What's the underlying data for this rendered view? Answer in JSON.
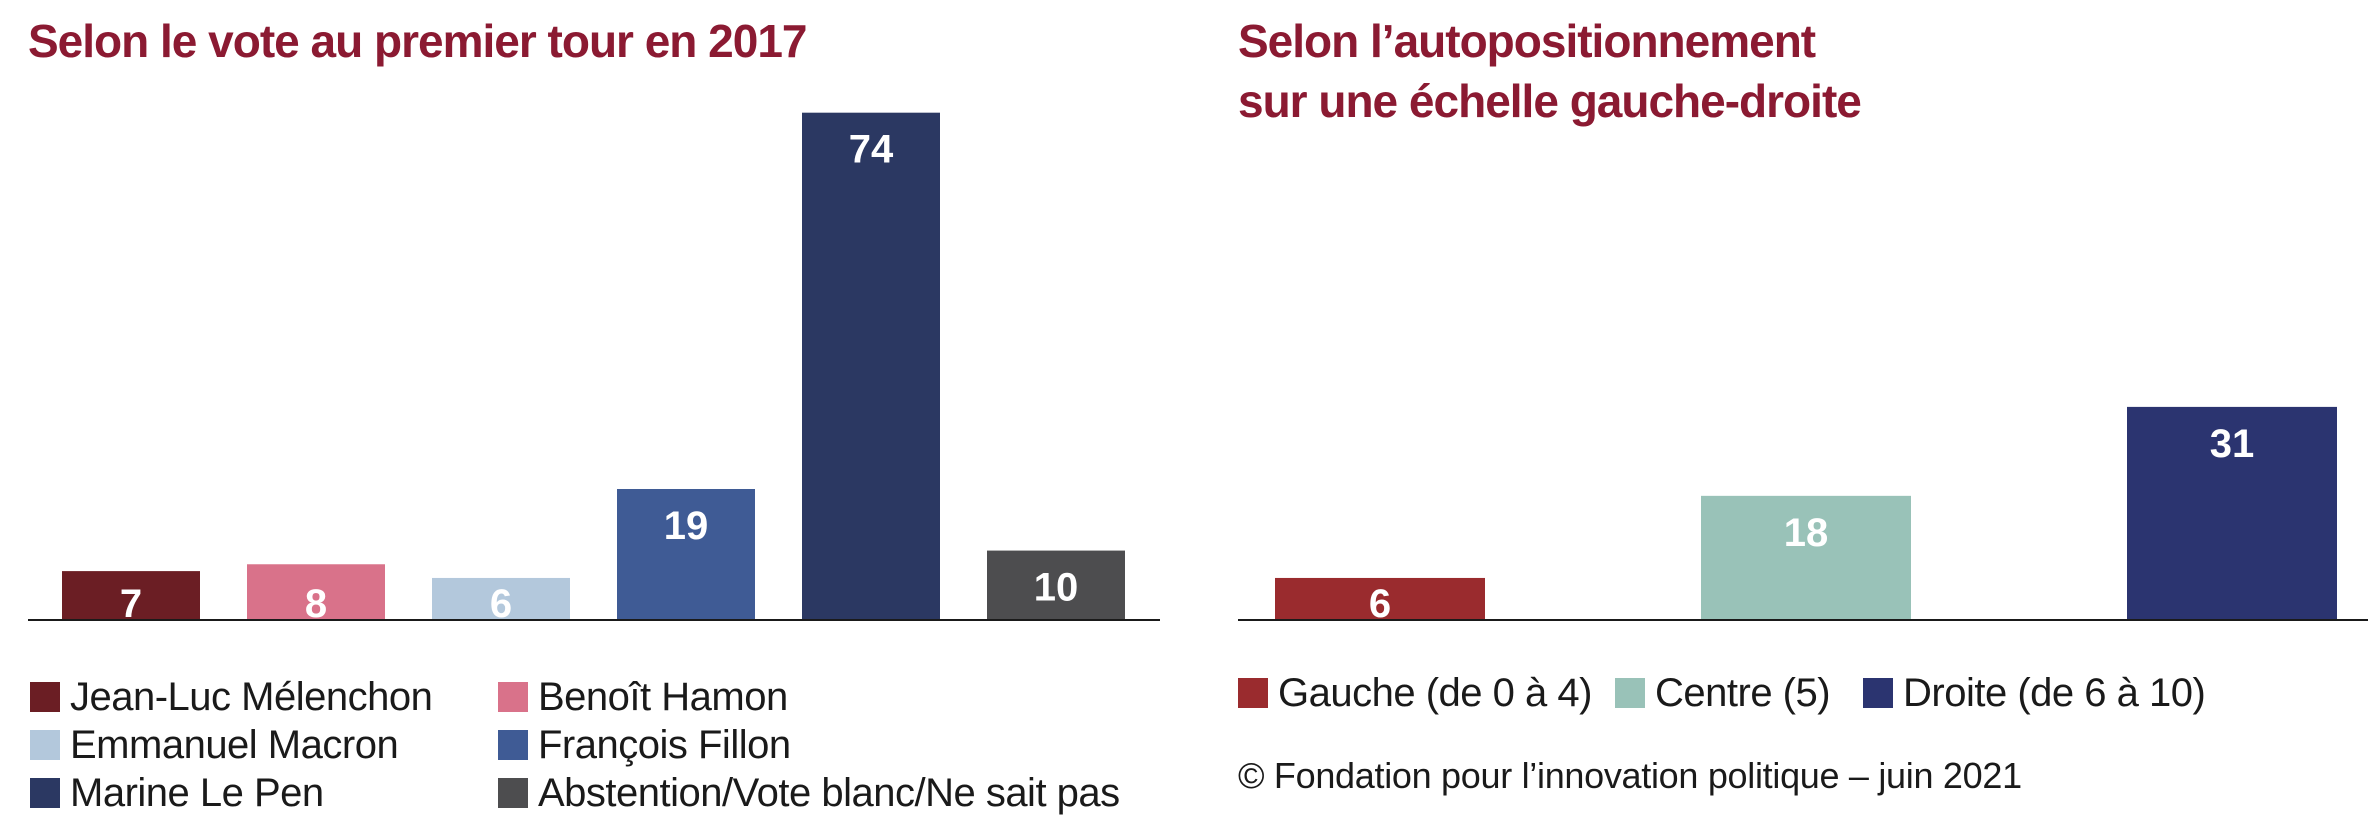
{
  "chart_data": [
    {
      "type": "bar",
      "title": "Selon le vote au premier tour en 2017",
      "categories": [
        "Jean-Luc Mélenchon",
        "Benoît Hamon",
        "Emmanuel Macron",
        "François Fillon",
        "Marine Le Pen",
        "Abstention/Vote blanc/Ne sait pas"
      ],
      "values": [
        7,
        8,
        6,
        19,
        74,
        10
      ],
      "data_labels": [
        "7",
        "8",
        "6",
        "19",
        "74",
        "10"
      ],
      "colors": [
        "#6b1e24",
        "#d9728a",
        "#b3c8dc",
        "#3f5b95",
        "#2b3862",
        "#4d4d4f"
      ],
      "ylim": [
        0,
        76
      ],
      "grid": false,
      "legend": {
        "placement": "bottom",
        "entries": [
          "Jean-Luc Mélenchon",
          "Benoît Hamon",
          "Emmanuel Macron",
          "François Fillon",
          "Marine Le Pen",
          "Abstention/Vote blanc/Ne sait pas"
        ]
      }
    },
    {
      "type": "bar",
      "title_lines": [
        "Selon l’autopositionnement",
        "sur une échelle gauche-droite"
      ],
      "categories": [
        "Gauche (de 0 à 4)",
        "Centre (5)",
        "Droite (de 6 à 10)"
      ],
      "values": [
        6,
        18,
        31
      ],
      "data_labels": [
        "6",
        "18",
        "31"
      ],
      "colors": [
        "#9a2b2e",
        "#99c2b8",
        "#2b3470"
      ],
      "ylim": [
        0,
        76
      ],
      "grid": false,
      "legend": {
        "placement": "bottom",
        "entries": [
          "Gauche (de 0 à 4)",
          "Centre (5)",
          "Droite (de 6 à 10)"
        ]
      }
    }
  ],
  "source": "© Fondation pour l’innovation politique – juin 2021",
  "label_color": "#ffffff",
  "axis_color": "#1a1a1a",
  "title_color": "#8b1a32"
}
